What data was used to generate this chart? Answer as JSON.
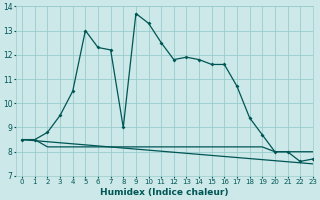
{
  "xlabel": "Humidex (Indice chaleur)",
  "bg_color": "#cce8e8",
  "grid_color": "#99cccc",
  "line_color": "#005555",
  "line1_x": [
    0,
    1,
    2,
    3,
    4,
    5,
    6,
    7,
    8,
    9,
    10,
    11,
    12,
    13,
    14,
    15,
    16,
    17,
    18,
    19,
    20,
    21,
    22,
    23
  ],
  "line1_y": [
    8.5,
    8.5,
    8.2,
    8.2,
    8.2,
    8.2,
    8.2,
    8.2,
    8.2,
    8.2,
    8.2,
    8.2,
    8.2,
    8.2,
    8.2,
    8.2,
    8.2,
    8.2,
    8.2,
    8.2,
    8.0,
    8.0,
    8.0,
    8.0
  ],
  "line2_x": [
    0,
    1,
    2,
    3,
    4,
    5,
    6,
    7,
    8,
    9,
    10,
    11,
    12,
    13,
    14,
    15,
    16,
    17,
    18,
    19,
    20,
    21,
    22,
    23
  ],
  "line2_y": [
    8.5,
    8.5,
    8.8,
    9.5,
    10.5,
    13.0,
    12.3,
    12.2,
    9.0,
    13.7,
    13.3,
    12.5,
    11.8,
    11.9,
    11.8,
    11.6,
    11.6,
    10.7,
    9.4,
    8.7,
    8.0,
    8.0,
    7.6,
    7.7
  ],
  "line3_x": [
    0,
    23
  ],
  "line3_y": [
    8.5,
    7.5
  ],
  "ylim": [
    7,
    14
  ],
  "xlim": [
    -0.5,
    23
  ],
  "yticks": [
    7,
    8,
    9,
    10,
    11,
    12,
    13,
    14
  ],
  "xticks": [
    0,
    1,
    2,
    3,
    4,
    5,
    6,
    7,
    8,
    9,
    10,
    11,
    12,
    13,
    14,
    15,
    16,
    17,
    18,
    19,
    20,
    21,
    22,
    23
  ]
}
